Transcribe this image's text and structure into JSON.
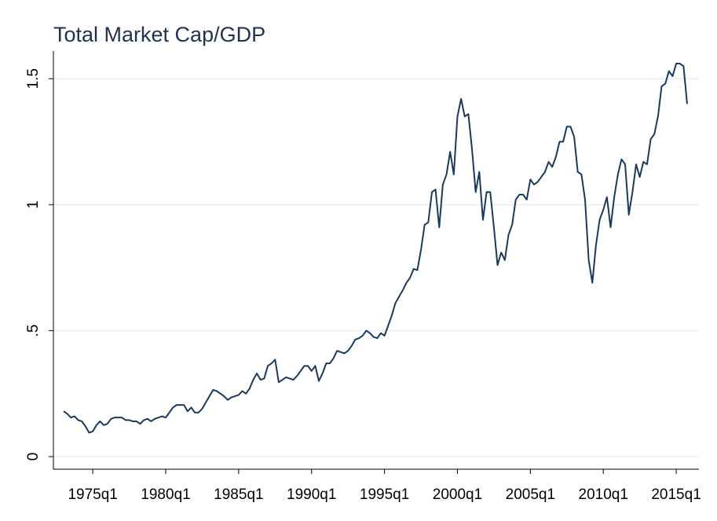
{
  "chart_data": {
    "type": "line",
    "title": "Total Market Cap/GDP",
    "x": [
      "1973q1",
      "1973q2",
      "1973q3",
      "1973q4",
      "1974q1",
      "1974q2",
      "1974q3",
      "1974q4",
      "1975q1",
      "1975q2",
      "1975q3",
      "1975q4",
      "1976q1",
      "1976q2",
      "1976q3",
      "1976q4",
      "1977q1",
      "1977q2",
      "1977q3",
      "1977q4",
      "1978q1",
      "1978q2",
      "1978q3",
      "1978q4",
      "1979q1",
      "1979q2",
      "1979q3",
      "1979q4",
      "1980q1",
      "1980q2",
      "1980q3",
      "1980q4",
      "1981q1",
      "1981q2",
      "1981q3",
      "1981q4",
      "1982q1",
      "1982q2",
      "1982q3",
      "1982q4",
      "1983q1",
      "1983q2",
      "1983q3",
      "1983q4",
      "1984q1",
      "1984q2",
      "1984q3",
      "1984q4",
      "1985q1",
      "1985q2",
      "1985q3",
      "1985q4",
      "1986q1",
      "1986q2",
      "1986q3",
      "1986q4",
      "1987q1",
      "1987q2",
      "1987q3",
      "1987q4",
      "1988q1",
      "1988q2",
      "1988q3",
      "1988q4",
      "1989q1",
      "1989q2",
      "1989q3",
      "1989q4",
      "1990q1",
      "1990q2",
      "1990q3",
      "1990q4",
      "1991q1",
      "1991q2",
      "1991q3",
      "1991q4",
      "1992q1",
      "1992q2",
      "1992q3",
      "1992q4",
      "1993q1",
      "1993q2",
      "1993q3",
      "1993q4",
      "1994q1",
      "1994q2",
      "1994q3",
      "1994q4",
      "1995q1",
      "1995q2",
      "1995q3",
      "1995q4",
      "1996q1",
      "1996q2",
      "1996q3",
      "1996q4",
      "1997q1",
      "1997q2",
      "1997q3",
      "1997q4",
      "1998q1",
      "1998q2",
      "1998q3",
      "1998q4",
      "1999q1",
      "1999q2",
      "1999q3",
      "1999q4",
      "2000q1",
      "2000q2",
      "2000q3",
      "2000q4",
      "2001q1",
      "2001q2",
      "2001q3",
      "2001q4",
      "2002q1",
      "2002q2",
      "2002q3",
      "2002q4",
      "2003q1",
      "2003q2",
      "2003q3",
      "2003q4",
      "2004q1",
      "2004q2",
      "2004q3",
      "2004q4",
      "2005q1",
      "2005q2",
      "2005q3",
      "2005q4",
      "2006q1",
      "2006q2",
      "2006q3",
      "2006q4",
      "2007q1",
      "2007q2",
      "2007q3",
      "2007q4",
      "2008q1",
      "2008q2",
      "2008q3",
      "2008q4",
      "2009q1",
      "2009q2",
      "2009q3",
      "2009q4",
      "2010q1",
      "2010q2",
      "2010q3",
      "2010q4",
      "2011q1",
      "2011q2",
      "2011q3",
      "2011q4",
      "2012q1",
      "2012q2",
      "2012q3",
      "2012q4",
      "2013q1",
      "2013q2",
      "2013q3",
      "2013q4",
      "2014q1",
      "2014q2",
      "2014q3",
      "2014q4",
      "2015q1",
      "2015q2",
      "2015q3",
      "2015q4"
    ],
    "values": [
      0.18,
      0.17,
      0.155,
      0.16,
      0.145,
      0.14,
      0.12,
      0.095,
      0.1,
      0.125,
      0.14,
      0.125,
      0.13,
      0.15,
      0.155,
      0.155,
      0.155,
      0.145,
      0.145,
      0.14,
      0.14,
      0.13,
      0.145,
      0.15,
      0.14,
      0.15,
      0.155,
      0.16,
      0.155,
      0.175,
      0.195,
      0.205,
      0.205,
      0.205,
      0.18,
      0.195,
      0.175,
      0.175,
      0.19,
      0.215,
      0.24,
      0.265,
      0.26,
      0.25,
      0.24,
      0.225,
      0.235,
      0.24,
      0.245,
      0.26,
      0.25,
      0.27,
      0.305,
      0.33,
      0.305,
      0.31,
      0.36,
      0.37,
      0.385,
      0.295,
      0.305,
      0.315,
      0.31,
      0.305,
      0.32,
      0.34,
      0.36,
      0.36,
      0.34,
      0.36,
      0.3,
      0.33,
      0.37,
      0.37,
      0.39,
      0.42,
      0.415,
      0.41,
      0.42,
      0.44,
      0.465,
      0.47,
      0.48,
      0.5,
      0.49,
      0.475,
      0.47,
      0.49,
      0.48,
      0.52,
      0.56,
      0.61,
      0.635,
      0.66,
      0.69,
      0.71,
      0.745,
      0.74,
      0.82,
      0.92,
      0.93,
      1.05,
      1.06,
      0.91,
      1.08,
      1.12,
      1.21,
      1.12,
      1.35,
      1.42,
      1.35,
      1.36,
      1.22,
      1.05,
      1.13,
      0.94,
      1.05,
      1.05,
      0.91,
      0.76,
      0.81,
      0.78,
      0.88,
      0.92,
      1.02,
      1.04,
      1.04,
      1.02,
      1.1,
      1.08,
      1.09,
      1.11,
      1.13,
      1.17,
      1.15,
      1.19,
      1.25,
      1.25,
      1.31,
      1.31,
      1.27,
      1.13,
      1.12,
      1.02,
      0.78,
      0.69,
      0.84,
      0.94,
      0.98,
      1.03,
      0.91,
      1.03,
      1.12,
      1.18,
      1.16,
      0.96,
      1.05,
      1.16,
      1.11,
      1.17,
      1.16,
      1.26,
      1.28,
      1.35,
      1.47,
      1.48,
      1.53,
      1.51,
      1.56,
      1.56,
      1.55,
      1.4
    ],
    "color": "#1a3a5c",
    "xticks": [
      "1975q1",
      "1980q1",
      "1985q1",
      "1990q1",
      "1995q1",
      "2000q1",
      "2005q1",
      "2010q1",
      "2015q1"
    ],
    "ylim": [
      -0.05,
      1.61
    ],
    "yticks": [
      0,
      {
        "value": 0.5,
        "label": ".5"
      },
      1,
      1.5
    ],
    "grid": true
  }
}
